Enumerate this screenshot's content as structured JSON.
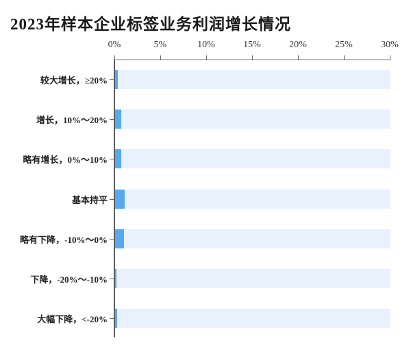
{
  "chart_data": {
    "type": "bar",
    "orientation": "horizontal",
    "title": "2023年样本企业标签业务利润增长情况",
    "categories": [
      "较大增长，≥20%",
      "增长，10%～20%",
      "略有增长，0%～10%",
      "基本持平",
      "略有下降，-10%～0%",
      "下降，-20%～-10%",
      "大幅下降，<-20%"
    ],
    "values": [
      0.3,
      0.65,
      0.65,
      1.05,
      1.0,
      0.15,
      0.22
    ],
    "value_unit": "%",
    "xlabel": "",
    "ylabel": "",
    "xlim": [
      0,
      30
    ],
    "x_ticks": [
      "0%",
      "5%",
      "10%",
      "15%",
      "20%",
      "25%",
      "30%"
    ],
    "x_tick_values": [
      0,
      5,
      10,
      15,
      20,
      25,
      30
    ],
    "axis_position": "top",
    "grid": false,
    "legend": "none",
    "bar_background_track_full_value": 30,
    "colors": {
      "bar": "#57a9f1",
      "bar_track": "#e9f2fc",
      "axis_line": "#5d5d5d",
      "tick_label_text": "#333333",
      "category_label_text": "#222222",
      "title_text": "#1a1a1a",
      "background": "#ffffff"
    }
  }
}
